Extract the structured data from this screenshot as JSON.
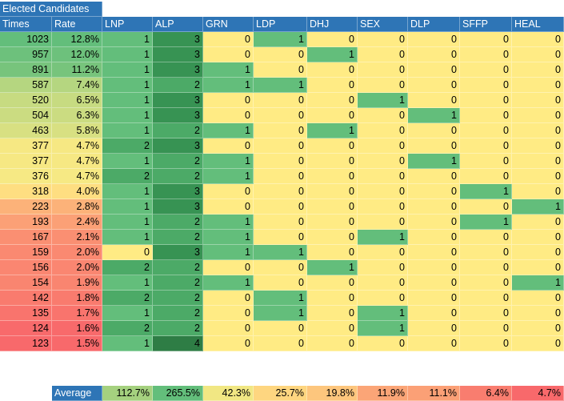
{
  "title": "Elected Candidates",
  "headers": [
    "Times",
    "Rate",
    "LNP",
    "ALP",
    "GRN",
    "LDP",
    "DHJ",
    "SEX",
    "DLP",
    "SFFP",
    "HEAL"
  ],
  "rows": [
    {
      "times": "1023",
      "rate": "12.8%",
      "v": [
        "1",
        "3",
        "0",
        "1",
        "0",
        "0",
        "0",
        "0",
        "0"
      ]
    },
    {
      "times": "957",
      "rate": "12.0%",
      "v": [
        "1",
        "3",
        "0",
        "0",
        "1",
        "0",
        "0",
        "0",
        "0"
      ]
    },
    {
      "times": "891",
      "rate": "11.2%",
      "v": [
        "1",
        "3",
        "1",
        "0",
        "0",
        "0",
        "0",
        "0",
        "0"
      ]
    },
    {
      "times": "587",
      "rate": "7.4%",
      "v": [
        "1",
        "2",
        "1",
        "1",
        "0",
        "0",
        "0",
        "0",
        "0"
      ]
    },
    {
      "times": "520",
      "rate": "6.5%",
      "v": [
        "1",
        "3",
        "0",
        "0",
        "0",
        "1",
        "0",
        "0",
        "0"
      ]
    },
    {
      "times": "504",
      "rate": "6.3%",
      "v": [
        "1",
        "3",
        "0",
        "0",
        "0",
        "0",
        "1",
        "0",
        "0"
      ]
    },
    {
      "times": "463",
      "rate": "5.8%",
      "v": [
        "1",
        "2",
        "1",
        "0",
        "1",
        "0",
        "0",
        "0",
        "0"
      ]
    },
    {
      "times": "377",
      "rate": "4.7%",
      "v": [
        "2",
        "3",
        "0",
        "0",
        "0",
        "0",
        "0",
        "0",
        "0"
      ]
    },
    {
      "times": "377",
      "rate": "4.7%",
      "v": [
        "1",
        "2",
        "1",
        "0",
        "0",
        "0",
        "1",
        "0",
        "0"
      ]
    },
    {
      "times": "376",
      "rate": "4.7%",
      "v": [
        "2",
        "2",
        "1",
        "0",
        "0",
        "0",
        "0",
        "0",
        "0"
      ]
    },
    {
      "times": "318",
      "rate": "4.0%",
      "v": [
        "1",
        "3",
        "0",
        "0",
        "0",
        "0",
        "0",
        "1",
        "0"
      ]
    },
    {
      "times": "223",
      "rate": "2.8%",
      "v": [
        "1",
        "3",
        "0",
        "0",
        "0",
        "0",
        "0",
        "0",
        "1"
      ]
    },
    {
      "times": "193",
      "rate": "2.4%",
      "v": [
        "1",
        "2",
        "1",
        "0",
        "0",
        "0",
        "0",
        "1",
        "0"
      ]
    },
    {
      "times": "167",
      "rate": "2.1%",
      "v": [
        "1",
        "2",
        "1",
        "0",
        "0",
        "1",
        "0",
        "0",
        "0"
      ]
    },
    {
      "times": "159",
      "rate": "2.0%",
      "v": [
        "0",
        "3",
        "1",
        "1",
        "0",
        "0",
        "0",
        "0",
        "0"
      ]
    },
    {
      "times": "156",
      "rate": "2.0%",
      "v": [
        "2",
        "2",
        "0",
        "0",
        "1",
        "0",
        "0",
        "0",
        "0"
      ]
    },
    {
      "times": "154",
      "rate": "1.9%",
      "v": [
        "1",
        "2",
        "1",
        "0",
        "0",
        "0",
        "0",
        "0",
        "1"
      ]
    },
    {
      "times": "142",
      "rate": "1.8%",
      "v": [
        "2",
        "2",
        "0",
        "1",
        "0",
        "0",
        "0",
        "0",
        "0"
      ]
    },
    {
      "times": "135",
      "rate": "1.7%",
      "v": [
        "1",
        "2",
        "0",
        "1",
        "0",
        "1",
        "0",
        "0",
        "0"
      ]
    },
    {
      "times": "124",
      "rate": "1.6%",
      "v": [
        "2",
        "2",
        "0",
        "0",
        "0",
        "1",
        "0",
        "0",
        "0"
      ]
    },
    {
      "times": "123",
      "rate": "1.5%",
      "v": [
        "1",
        "4",
        "0",
        "0",
        "0",
        "0",
        "0",
        "0",
        "0"
      ]
    }
  ],
  "average": {
    "label": "Average",
    "values": [
      "112.7%",
      "265.5%",
      "42.3%",
      "25.7%",
      "19.8%",
      "11.9%",
      "11.1%",
      "6.4%",
      "4.7%"
    ]
  },
  "colors": {
    "header": "#2e75b6",
    "yellow": "#ffeb84",
    "green": "#63be7b",
    "red": "#f8696b"
  }
}
